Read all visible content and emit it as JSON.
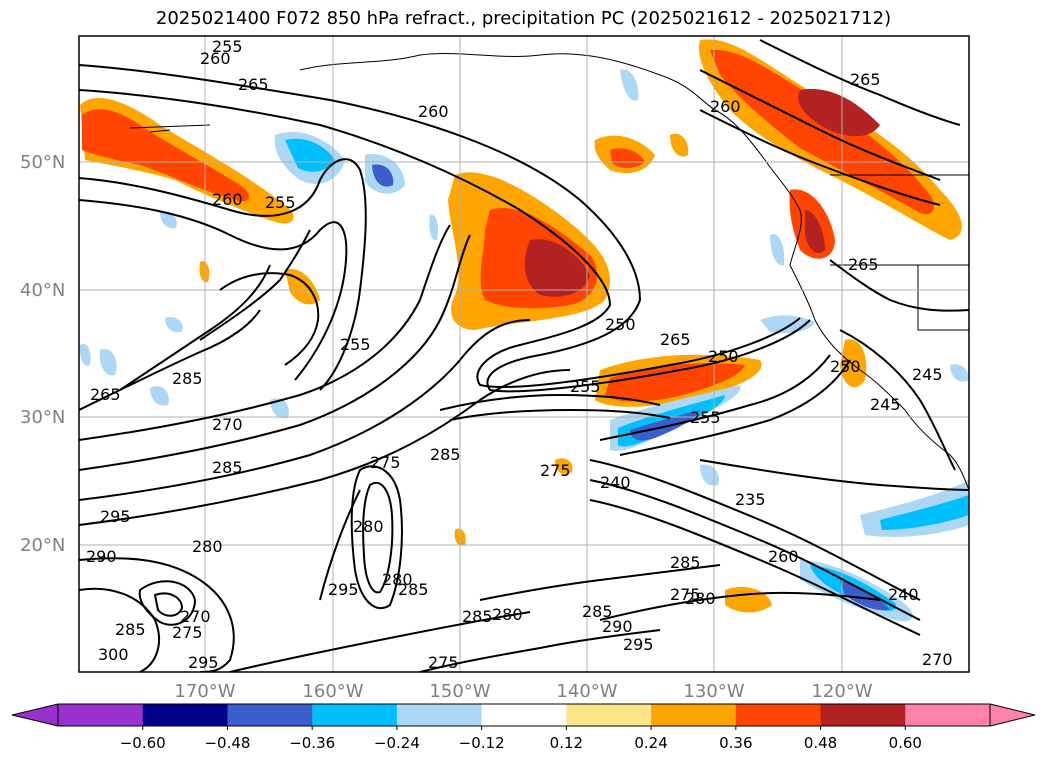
{
  "title": "2025021400 F072 850 hPa refract., precipitation PC (2025021612 - 2025021712)",
  "axes": {
    "lat_labels": [
      "50°N",
      "40°N",
      "30°N",
      "20°N"
    ],
    "lon_labels": [
      "170°W",
      "160°W",
      "150°W",
      "140°W",
      "130°W",
      "120°W"
    ]
  },
  "colorbar": {
    "ticks": [
      "-0.60",
      "-0.48",
      "-0.36",
      "-0.24",
      "-0.12",
      "0.12",
      "0.24",
      "0.36",
      "0.48",
      "0.60"
    ],
    "colors": [
      "#9932cc",
      "#00008b",
      "#3a5fcd",
      "#00bfff",
      "#add8f5",
      "#ffffff",
      "#fde68a",
      "#ffa500",
      "#ff4500",
      "#b22222",
      "#ff82ab"
    ]
  },
  "contour_labels": [
    "255",
    "260",
    "265",
    "260",
    "260",
    "255",
    "265",
    "265",
    "270",
    "255",
    "285",
    "275",
    "280",
    "285",
    "295",
    "290",
    "280",
    "270",
    "275",
    "285",
    "300",
    "295",
    "275",
    "285",
    "280",
    "285",
    "290",
    "295",
    "285",
    "280",
    "275",
    "275",
    "250",
    "255",
    "255",
    "240",
    "235",
    "260",
    "265",
    "285",
    "240",
    "245",
    "245",
    "250",
    "250",
    "260",
    "265",
    "270",
    "280",
    "285",
    "295"
  ],
  "colors": {
    "contour": "#000000",
    "grid": "#b0b0b0",
    "frame": "#000000",
    "axis_label": "#808080"
  }
}
